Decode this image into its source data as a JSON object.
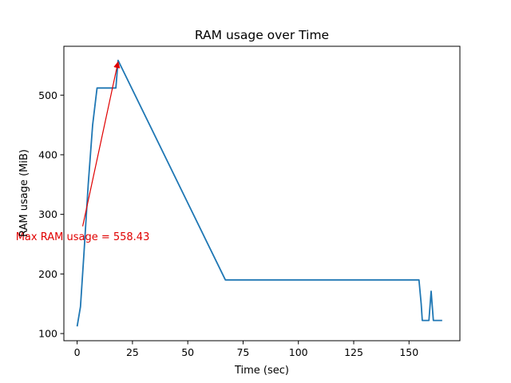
{
  "chart_data": {
    "type": "line",
    "title": "RAM usage over Time",
    "xlabel": "Time (sec)",
    "ylabel": "RAM usage (MiB)",
    "xlim": [
      -6,
      173
    ],
    "ylim": [
      88,
      582
    ],
    "xticks": [
      0,
      25,
      50,
      75,
      100,
      125,
      150
    ],
    "yticks": [
      100,
      200,
      300,
      400,
      500
    ],
    "grid": false,
    "series": [
      {
        "color": "#1f77b4",
        "x": [
          0,
          1.5,
          3,
          5,
          7,
          9,
          12,
          15,
          17.5,
          18.5,
          67,
          100,
          154.5,
          155.5,
          156,
          159,
          160,
          161,
          162,
          165
        ],
        "y": [
          112,
          145,
          230,
          350,
          450,
          512,
          512,
          512,
          512,
          558.43,
          190,
          190,
          190,
          150,
          122,
          122,
          171,
          122,
          122,
          122
        ]
      }
    ],
    "annotation": {
      "text": "Max RAM usage = 558.43",
      "color": "#e00000",
      "arrow_from": [
        2.5,
        280
      ],
      "arrow_to": [
        18.5,
        558.43
      ],
      "text_anchor_data": [
        2.5,
        263
      ]
    }
  }
}
